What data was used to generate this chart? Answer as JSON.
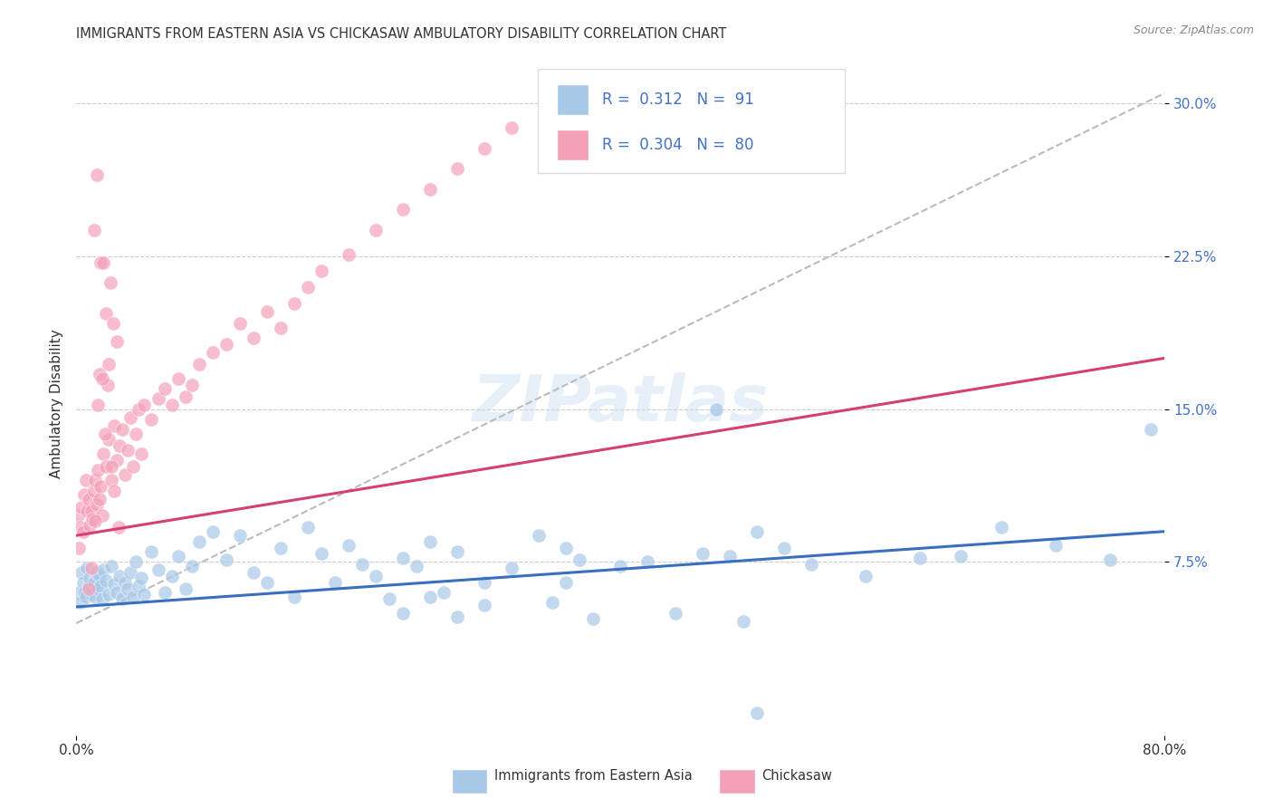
{
  "title": "IMMIGRANTS FROM EASTERN ASIA VS CHICKASAW AMBULATORY DISABILITY CORRELATION CHART",
  "source": "Source: ZipAtlas.com",
  "label_blue": "Immigrants from Eastern Asia",
  "label_pink": "Chickasaw",
  "ylabel": "Ambulatory Disability",
  "r_blue": "0.312",
  "n_blue": "91",
  "r_pink": "0.304",
  "n_pink": "80",
  "color_blue_scatter": "#a8c8e8",
  "color_pink_scatter": "#f4a0b8",
  "color_blue_line": "#3a6fbd",
  "color_pink_line": "#d44070",
  "color_text_blue": "#4472c4",
  "color_text_dark": "#333333",
  "color_grid": "#cccccc",
  "color_dash": "#bbbbbb",
  "xmin": 0.0,
  "xmax": 0.8,
  "ymin": -0.01,
  "ymax": 0.315,
  "blue_trend": [
    0.0,
    0.053,
    0.8,
    0.09
  ],
  "pink_trend": [
    0.0,
    0.088,
    0.8,
    0.175
  ],
  "dash_trend": [
    0.0,
    0.045,
    0.8,
    0.305
  ],
  "watermark": "ZIPatlas",
  "blue_scatter_x": [
    0.002,
    0.003,
    0.004,
    0.005,
    0.006,
    0.007,
    0.008,
    0.009,
    0.01,
    0.011,
    0.012,
    0.013,
    0.014,
    0.015,
    0.016,
    0.017,
    0.018,
    0.019,
    0.02,
    0.022,
    0.024,
    0.026,
    0.028,
    0.03,
    0.032,
    0.034,
    0.036,
    0.038,
    0.04,
    0.042,
    0.044,
    0.046,
    0.048,
    0.05,
    0.055,
    0.06,
    0.065,
    0.07,
    0.075,
    0.08,
    0.085,
    0.09,
    0.1,
    0.11,
    0.12,
    0.13,
    0.14,
    0.15,
    0.16,
    0.17,
    0.18,
    0.19,
    0.2,
    0.21,
    0.22,
    0.23,
    0.24,
    0.25,
    0.26,
    0.27,
    0.28,
    0.3,
    0.32,
    0.34,
    0.36,
    0.38,
    0.4,
    0.42,
    0.44,
    0.46,
    0.48,
    0.5,
    0.52,
    0.54,
    0.58,
    0.62,
    0.65,
    0.68,
    0.72,
    0.76,
    0.79,
    0.49,
    0.35,
    0.36,
    0.37,
    0.3,
    0.28,
    0.26,
    0.24,
    0.5,
    0.47
  ],
  "blue_scatter_y": [
    0.06,
    0.055,
    0.07,
    0.065,
    0.06,
    0.058,
    0.072,
    0.063,
    0.067,
    0.059,
    0.061,
    0.065,
    0.058,
    0.07,
    0.062,
    0.068,
    0.063,
    0.057,
    0.071,
    0.066,
    0.059,
    0.073,
    0.064,
    0.06,
    0.068,
    0.057,
    0.065,
    0.062,
    0.07,
    0.058,
    0.075,
    0.063,
    0.067,
    0.059,
    0.08,
    0.071,
    0.06,
    0.068,
    0.078,
    0.062,
    0.073,
    0.085,
    0.09,
    0.076,
    0.088,
    0.07,
    0.065,
    0.082,
    0.058,
    0.092,
    0.079,
    0.065,
    0.083,
    0.074,
    0.068,
    0.057,
    0.077,
    0.073,
    0.085,
    0.06,
    0.08,
    0.054,
    0.072,
    0.088,
    0.065,
    0.047,
    0.073,
    0.075,
    0.05,
    0.079,
    0.078,
    0.09,
    0.082,
    0.074,
    0.068,
    0.077,
    0.078,
    0.092,
    0.083,
    0.076,
    0.14,
    0.046,
    0.055,
    0.082,
    0.076,
    0.065,
    0.048,
    0.058,
    0.05,
    0.001,
    0.15
  ],
  "pink_scatter_x": [
    0.001,
    0.002,
    0.003,
    0.004,
    0.005,
    0.006,
    0.007,
    0.008,
    0.009,
    0.01,
    0.011,
    0.012,
    0.013,
    0.014,
    0.015,
    0.016,
    0.017,
    0.018,
    0.019,
    0.02,
    0.022,
    0.024,
    0.026,
    0.028,
    0.03,
    0.032,
    0.034,
    0.036,
    0.038,
    0.04,
    0.042,
    0.044,
    0.046,
    0.048,
    0.05,
    0.055,
    0.06,
    0.065,
    0.07,
    0.075,
    0.08,
    0.085,
    0.09,
    0.1,
    0.11,
    0.12,
    0.13,
    0.14,
    0.15,
    0.16,
    0.17,
    0.18,
    0.2,
    0.22,
    0.24,
    0.26,
    0.28,
    0.3,
    0.32,
    0.35,
    0.013,
    0.018,
    0.022,
    0.025,
    0.027,
    0.03,
    0.015,
    0.02,
    0.017,
    0.023,
    0.019,
    0.024,
    0.016,
    0.021,
    0.026,
    0.014,
    0.028,
    0.031,
    0.011,
    0.009
  ],
  "pink_scatter_y": [
    0.098,
    0.082,
    0.092,
    0.102,
    0.09,
    0.108,
    0.115,
    0.1,
    0.106,
    0.093,
    0.1,
    0.096,
    0.11,
    0.115,
    0.103,
    0.12,
    0.106,
    0.112,
    0.098,
    0.128,
    0.122,
    0.135,
    0.115,
    0.142,
    0.125,
    0.132,
    0.14,
    0.118,
    0.13,
    0.146,
    0.122,
    0.138,
    0.15,
    0.128,
    0.152,
    0.145,
    0.155,
    0.16,
    0.152,
    0.165,
    0.156,
    0.162,
    0.172,
    0.178,
    0.182,
    0.192,
    0.185,
    0.198,
    0.19,
    0.202,
    0.21,
    0.218,
    0.226,
    0.238,
    0.248,
    0.258,
    0.268,
    0.278,
    0.288,
    0.298,
    0.238,
    0.222,
    0.197,
    0.212,
    0.192,
    0.183,
    0.265,
    0.222,
    0.167,
    0.162,
    0.165,
    0.172,
    0.152,
    0.138,
    0.122,
    0.095,
    0.11,
    0.092,
    0.072,
    0.062
  ]
}
